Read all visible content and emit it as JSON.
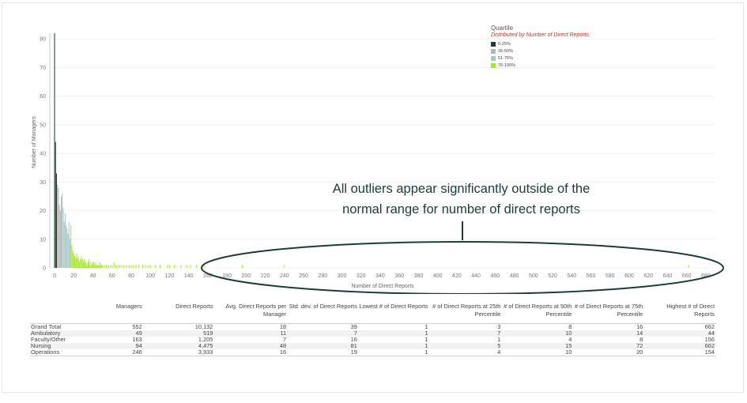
{
  "chart_data": {
    "type": "bar",
    "title": "",
    "xlabel": "Number of Direct Reports",
    "ylabel": "Number of Managers",
    "xlim": [
      -5,
      690
    ],
    "ylim": [
      0,
      82
    ],
    "x_ticks": [
      0,
      20,
      40,
      60,
      80,
      100,
      120,
      140,
      160,
      180,
      200,
      220,
      240,
      260,
      280,
      300,
      320,
      340,
      360,
      380,
      400,
      420,
      440,
      460,
      480,
      500,
      520,
      540,
      560,
      580,
      600,
      620,
      640,
      660,
      680
    ],
    "y_ticks": [
      0,
      10,
      20,
      30,
      40,
      50,
      60,
      70,
      80
    ],
    "series": [
      {
        "name": "0-25%",
        "color": "#1e3d33",
        "x": [
          0,
          1,
          2
        ],
        "values": [
          82,
          44,
          33
        ]
      },
      {
        "name": "26-50%",
        "color": "#b5b5b5",
        "x": [
          3,
          4,
          5,
          6,
          7
        ],
        "values": [
          29,
          28,
          22,
          20,
          25
        ]
      },
      {
        "name": "51-75%",
        "color": "#a8c8c6",
        "x": [
          8,
          9,
          10,
          11,
          12,
          13,
          14,
          15,
          16
        ],
        "values": [
          26,
          21,
          16,
          19,
          15,
          14,
          12,
          16,
          10
        ]
      },
      {
        "name": "76-100%",
        "color": "#a5e82c",
        "x": [
          17,
          18,
          19,
          20,
          21,
          22,
          23,
          24,
          25,
          26,
          27,
          28,
          29,
          30,
          31,
          32,
          33,
          34,
          35,
          36,
          37,
          38,
          39,
          40,
          41,
          42,
          43,
          44,
          45,
          46,
          47,
          48,
          49,
          50,
          52,
          54,
          56,
          58,
          60,
          62,
          64,
          66,
          68,
          70,
          72,
          75,
          78,
          80,
          82,
          85,
          88,
          92,
          95,
          98,
          100,
          105,
          110,
          118,
          120,
          125,
          132,
          138,
          142,
          148,
          154,
          156,
          196,
          240,
          662
        ],
        "values": [
          15,
          8,
          6,
          5,
          4,
          3,
          5,
          4,
          3,
          2,
          3,
          4,
          3,
          2,
          3,
          2,
          2,
          1,
          2,
          3,
          1,
          2,
          1,
          2,
          2,
          1,
          2,
          1,
          1,
          1,
          2,
          1,
          1,
          1,
          1,
          1,
          1,
          1,
          1,
          2,
          1,
          1,
          1,
          1,
          1,
          1,
          1,
          1,
          1,
          1,
          1,
          1,
          1,
          1,
          1,
          1,
          1,
          1,
          1,
          1,
          1,
          1,
          1,
          1,
          1,
          1,
          1,
          1,
          1
        ]
      }
    ],
    "legend": {
      "title": "Quartile",
      "subtitle": "Distributed by Number of Direct Reports",
      "placement": "top-right"
    },
    "annotation": "All outliers appear significantly outside of the normal range for number of direct reports"
  },
  "table": {
    "headers": [
      "",
      "Managers",
      "Direct Reports",
      "Avg. Direct Reports per Manager",
      "Std. dev. of Direct Reports",
      "Lowest # of Direct Reports",
      "# of Direct Reports at 25th Percentile",
      "# of Direct Reports at 50th Percentile",
      "# of Direct Reports at 75th Percentile",
      "Highest # of Direct Reports"
    ],
    "rows": [
      [
        "Grand Total",
        "552",
        "10,132",
        "18",
        "39",
        "1",
        "3",
        "8",
        "16",
        "662"
      ],
      [
        "Ambulatory",
        "49",
        "519",
        "11",
        "7",
        "1",
        "7",
        "10",
        "14",
        "44"
      ],
      [
        "Faculty/Other",
        "163",
        "1,205",
        "7",
        "16",
        "1",
        "1",
        "4",
        "8",
        "156"
      ],
      [
        "Nursing",
        "94",
        "4,475",
        "48",
        "81",
        "1",
        "5",
        "15",
        "72",
        "662"
      ],
      [
        "Operations",
        "246",
        "3,933",
        "16",
        "19",
        "1",
        "4",
        "10",
        "20",
        "154"
      ]
    ]
  },
  "annotation_lines": [
    "All outliers appear significantly outside of the",
    "normal range for number of direct reports"
  ],
  "colors": {
    "callout": "#1d3b3a",
    "ellipse": "#1d3b3a",
    "axis_text": "#777777"
  }
}
